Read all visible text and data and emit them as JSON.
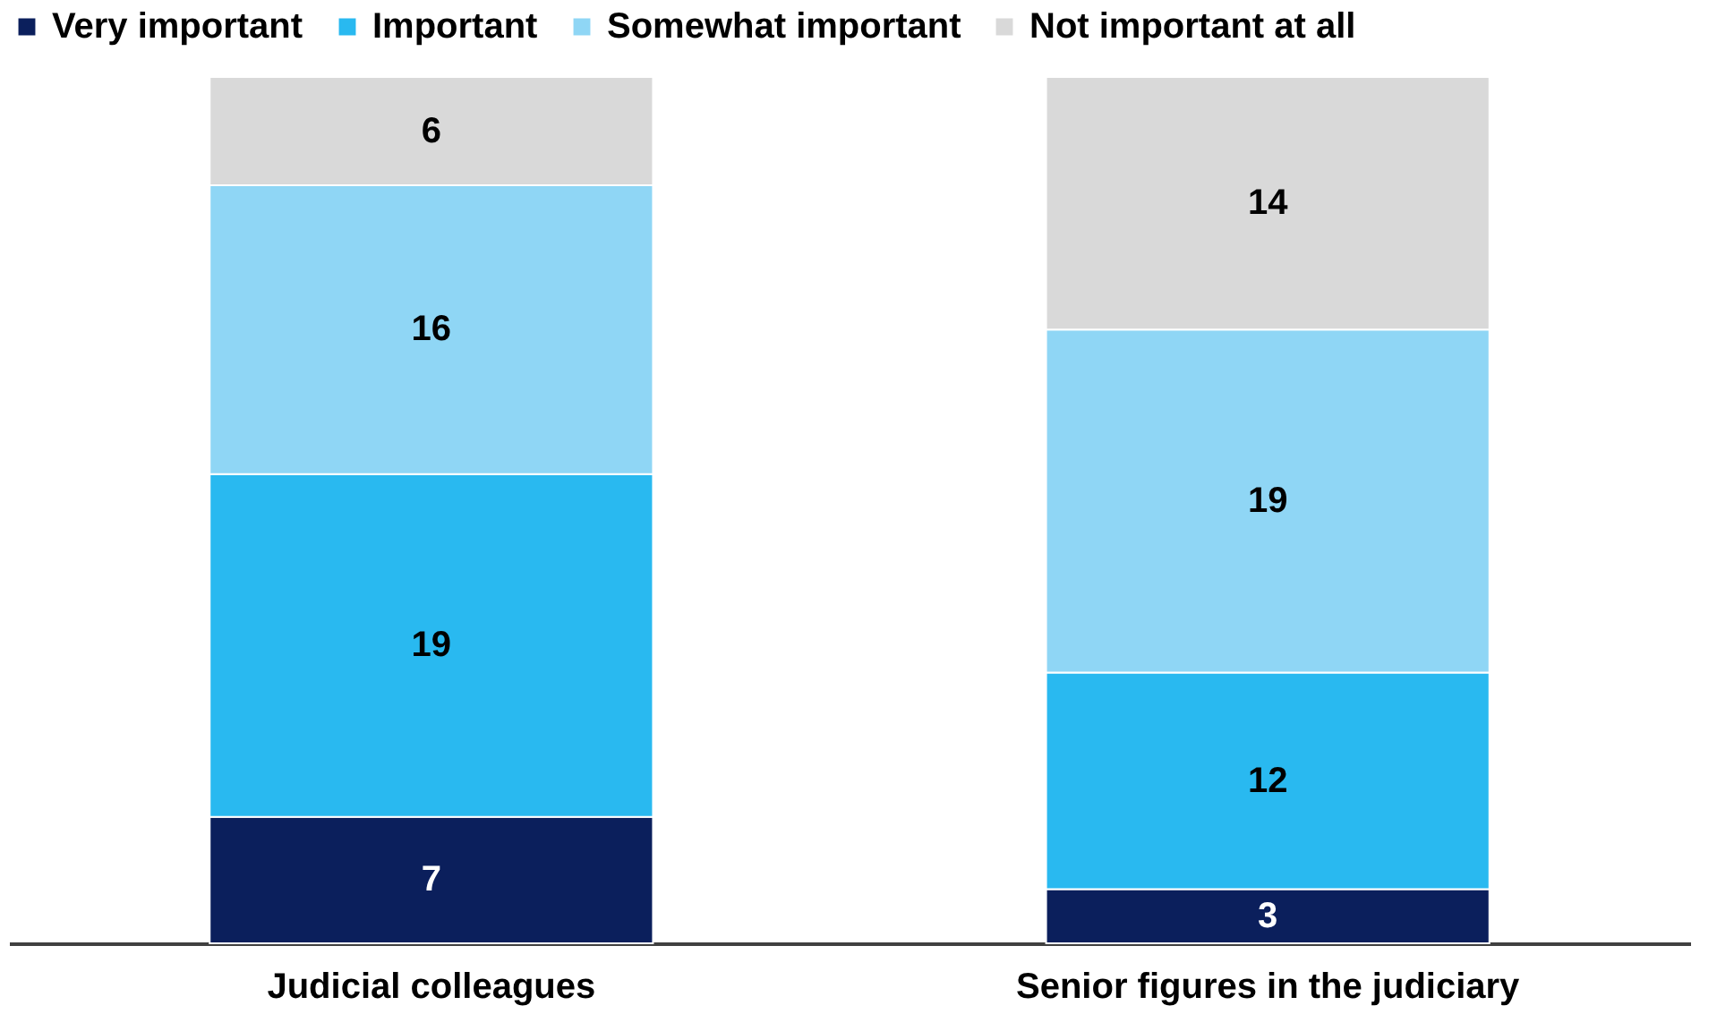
{
  "chart_data": {
    "type": "bar",
    "stacked": true,
    "data_labels": true,
    "legend": "top",
    "grid": false,
    "tick_labels": "x",
    "categories": [
      "Judicial colleagues",
      "Senior figures in the judiciary"
    ],
    "series": [
      {
        "name": "Very important",
        "color": "#0b1f5c",
        "values": [
          7,
          3
        ]
      },
      {
        "name": "Important",
        "color": "#29b9f0",
        "values": [
          19,
          12
        ]
      },
      {
        "name": "Somewhat important",
        "color": "#8fd6f5",
        "values": [
          16,
          19
        ]
      },
      {
        "name": "Not important at all",
        "color": "#d9d9d9",
        "values": [
          6,
          14
        ]
      }
    ]
  }
}
